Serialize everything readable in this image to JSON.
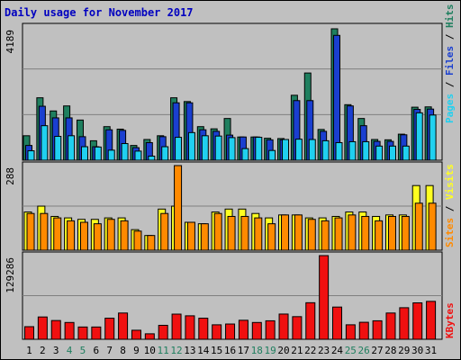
{
  "page": {
    "title": "Daily usage for November 2017"
  },
  "colors": {
    "hits": "#1f7f5f",
    "files": "#1a3fd0",
    "pages": "#20d0f0",
    "visits": "#ffff20",
    "sites": "#ff8a00",
    "kbytes": "#f01010",
    "weekend_day": "#1f7f5f",
    "weekday": "#000000"
  },
  "chart_data": [
    {
      "type": "bar",
      "title": "Daily usage for November 2017",
      "categories": [
        "1",
        "2",
        "3",
        "4",
        "5",
        "6",
        "7",
        "8",
        "9",
        "10",
        "11",
        "12",
        "13",
        "14",
        "15",
        "16",
        "17",
        "18",
        "19",
        "20",
        "21",
        "22",
        "23",
        "24",
        "25",
        "26",
        "27",
        "28",
        "29",
        "30",
        "31"
      ],
      "weekend_days": [
        "4",
        "5",
        "11",
        "12",
        "18",
        "19",
        "25",
        "26"
      ],
      "ylabel": "Pages / Files / Hits",
      "max_label": "4189",
      "ylim": [
        0,
        4189
      ],
      "series": [
        {
          "name": "Hits",
          "values": [
            780,
            1990,
            1570,
            1730,
            1280,
            620,
            1070,
            990,
            470,
            660,
            780,
            1990,
            1870,
            1070,
            1000,
            1330,
            740,
            740,
            700,
            690,
            2070,
            2780,
            980,
            4189,
            1770,
            1330,
            660,
            650,
            830,
            1690,
            1700
          ]
        },
        {
          "name": "Files",
          "values": [
            470,
            1720,
            1350,
            1350,
            750,
            430,
            970,
            950,
            400,
            560,
            750,
            1830,
            1830,
            970,
            920,
            800,
            740,
            740,
            650,
            650,
            1900,
            1900,
            920,
            3980,
            1730,
            1100,
            600,
            600,
            810,
            1620,
            1630
          ]
        },
        {
          "name": "Pages",
          "values": [
            300,
            1100,
            760,
            780,
            430,
            420,
            320,
            530,
            290,
            130,
            430,
            730,
            880,
            780,
            770,
            720,
            370,
            730,
            310,
            660,
            670,
            660,
            620,
            560,
            590,
            590,
            450,
            450,
            450,
            1510,
            1440
          ]
        }
      ]
    },
    {
      "type": "bar",
      "categories": [
        "1",
        "2",
        "3",
        "4",
        "5",
        "6",
        "7",
        "8",
        "9",
        "10",
        "11",
        "12",
        "13",
        "14",
        "15",
        "16",
        "17",
        "18",
        "19",
        "20",
        "21",
        "22",
        "23",
        "24",
        "25",
        "26",
        "27",
        "28",
        "29",
        "30",
        "31"
      ],
      "ylabel": "Sites / Visits",
      "max_label": "288",
      "ylim": [
        0,
        288
      ],
      "series": [
        {
          "name": "Visits",
          "values": [
            130,
            150,
            115,
            110,
            105,
            105,
            110,
            110,
            70,
            50,
            140,
            150,
            95,
            90,
            130,
            140,
            140,
            125,
            110,
            120,
            120,
            110,
            110,
            115,
            130,
            130,
            115,
            120,
            120,
            220,
            220
          ]
        },
        {
          "name": "Sites",
          "values": [
            125,
            125,
            110,
            100,
            95,
            90,
            105,
            100,
            65,
            50,
            125,
            288,
            95,
            90,
            125,
            115,
            115,
            110,
            90,
            120,
            120,
            105,
            100,
            110,
            120,
            115,
            100,
            115,
            115,
            160,
            160
          ]
        }
      ]
    },
    {
      "type": "bar",
      "categories": [
        "1",
        "2",
        "3",
        "4",
        "5",
        "6",
        "7",
        "8",
        "9",
        "10",
        "11",
        "12",
        "13",
        "14",
        "15",
        "16",
        "17",
        "18",
        "19",
        "20",
        "21",
        "22",
        "23",
        "24",
        "25",
        "26",
        "27",
        "28",
        "29",
        "30",
        "31"
      ],
      "ylabel": "KBytes",
      "max_label": "129286",
      "ylim": [
        0,
        129286
      ],
      "series": [
        {
          "name": "KBytes",
          "values": [
            19500,
            34500,
            29000,
            26000,
            19000,
            19000,
            32600,
            40600,
            14000,
            8500,
            21600,
            38900,
            36300,
            32600,
            22400,
            23600,
            29400,
            26000,
            28600,
            39000,
            35000,
            56500,
            129286,
            49800,
            22400,
            26300,
            28600,
            40600,
            48800,
            56300,
            58600
          ]
        }
      ]
    }
  ]
}
